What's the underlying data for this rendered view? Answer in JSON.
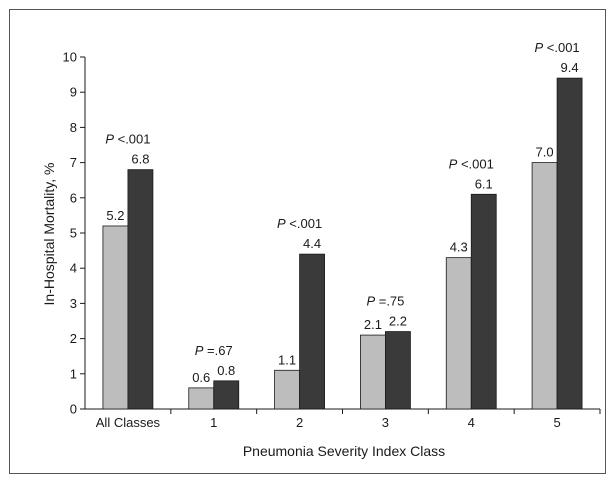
{
  "chart_data": {
    "type": "bar",
    "categories": [
      "All Classes",
      "1",
      "2",
      "3",
      "4",
      "5"
    ],
    "series": [
      {
        "values": [
          5.2,
          0.6,
          1.1,
          2.1,
          4.3,
          7.0
        ],
        "color": "#bdbdbd"
      },
      {
        "values": [
          6.8,
          0.8,
          4.4,
          2.2,
          6.1,
          9.4
        ],
        "color": "#3a3a3a"
      }
    ],
    "value_labels": [
      [
        "5.2",
        "0.6",
        "1.1",
        "2.1",
        "4.3",
        "7.0"
      ],
      [
        "6.8",
        "0.8",
        "4.4",
        "2.2",
        "6.1",
        "9.4"
      ]
    ],
    "p_values": [
      "<.001",
      "=.67",
      "<.001",
      "=.75",
      "<.001",
      "<.001"
    ],
    "p_prefix": "P",
    "title": "",
    "xlabel": "Pneumonia Severity Index Class",
    "ylabel": "In-Hospital Mortality, %",
    "ylim": [
      0,
      10
    ],
    "yticks": [
      "0",
      "1",
      "2",
      "3",
      "4",
      "5",
      "6",
      "7",
      "8",
      "9",
      "10"
    ],
    "grid": false,
    "legend": "none"
  }
}
